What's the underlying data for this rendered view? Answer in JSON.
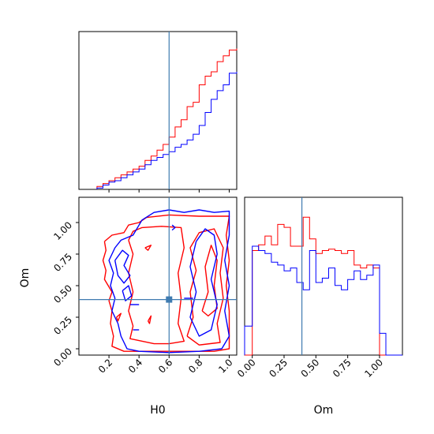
{
  "colors": {
    "red": "#ff0000",
    "blue": "#0000ff",
    "truth": "#3f7bb0"
  },
  "chart_data": [
    {
      "type": "histogram",
      "panel": "H0 marginal",
      "xlim": [
        0.0,
        1.05
      ],
      "truth": 0.6,
      "bin_edges": [
        0.12,
        0.16,
        0.2,
        0.24,
        0.28,
        0.32,
        0.36,
        0.4,
        0.44,
        0.48,
        0.52,
        0.56,
        0.6,
        0.64,
        0.68,
        0.72,
        0.76,
        0.8,
        0.84,
        0.88,
        0.92,
        0.96,
        1.0,
        1.05
      ],
      "series": [
        {
          "color": "red",
          "values": [
            0.02,
            0.04,
            0.06,
            0.08,
            0.1,
            0.12,
            0.14,
            0.16,
            0.2,
            0.23,
            0.27,
            0.31,
            0.36,
            0.43,
            0.48,
            0.57,
            0.6,
            0.72,
            0.78,
            0.81,
            0.88,
            0.92,
            0.96,
            0.97
          ]
        },
        {
          "color": "blue",
          "values": [
            0.01,
            0.03,
            0.05,
            0.06,
            0.08,
            0.1,
            0.12,
            0.14,
            0.17,
            0.2,
            0.22,
            0.24,
            0.26,
            0.29,
            0.31,
            0.34,
            0.38,
            0.44,
            0.53,
            0.62,
            0.68,
            0.72,
            0.8,
            0.81
          ]
        }
      ]
    },
    {
      "type": "contour",
      "panel": "H0 vs Om",
      "xlabel": "H0",
      "ylabel": "Om",
      "xlim": [
        0.0,
        1.05
      ],
      "ylim": [
        -0.05,
        1.2
      ],
      "xticks": [
        "0.2",
        "0.4",
        "0.6",
        "0.8",
        "1.0"
      ],
      "yticks": [
        "0.00",
        "0.25",
        "0.50",
        "0.75",
        "1.00"
      ],
      "truth": {
        "x": 0.6,
        "y": 0.39
      },
      "series": [
        {
          "color": "red",
          "contours": [
            [
              [
                0.17,
                0.85
              ],
              [
                0.18,
                0.78
              ],
              [
                0.16,
                0.7
              ],
              [
                0.18,
                0.62
              ],
              [
                0.17,
                0.55
              ],
              [
                0.22,
                0.45
              ],
              [
                0.2,
                0.38
              ],
              [
                0.22,
                0.3
              ],
              [
                0.21,
                0.2
              ],
              [
                0.23,
                0.1
              ],
              [
                0.22,
                0.02
              ],
              [
                0.3,
                -0.02
              ],
              [
                0.5,
                -0.02
              ],
              [
                0.7,
                -0.02
              ],
              [
                0.9,
                -0.02
              ],
              [
                1.0,
                0.0
              ],
              [
                1.0,
                0.3
              ],
              [
                0.98,
                0.5
              ],
              [
                1.0,
                0.7
              ],
              [
                0.98,
                0.9
              ],
              [
                1.0,
                1.05
              ],
              [
                0.8,
                1.05
              ],
              [
                0.6,
                1.06
              ],
              [
                0.45,
                1.04
              ],
              [
                0.4,
                1.0
              ],
              [
                0.33,
                0.98
              ],
              [
                0.3,
                0.92
              ],
              [
                0.22,
                0.9
              ],
              [
                0.17,
                0.85
              ]
            ],
            [
              [
                0.33,
                0.86
              ],
              [
                0.36,
                0.75
              ],
              [
                0.33,
                0.6
              ],
              [
                0.36,
                0.45
              ],
              [
                0.33,
                0.3
              ],
              [
                0.36,
                0.18
              ],
              [
                0.34,
                0.08
              ],
              [
                0.5,
                0.04
              ],
              [
                0.6,
                0.04
              ],
              [
                0.7,
                0.06
              ],
              [
                0.66,
                0.2
              ],
              [
                0.68,
                0.4
              ],
              [
                0.66,
                0.6
              ],
              [
                0.7,
                0.8
              ],
              [
                0.68,
                0.96
              ],
              [
                0.55,
                0.97
              ],
              [
                0.42,
                0.96
              ],
              [
                0.36,
                0.93
              ],
              [
                0.33,
                0.86
              ]
            ],
            [
              [
                0.72,
                0.1
              ],
              [
                0.76,
                0.25
              ],
              [
                0.74,
                0.45
              ],
              [
                0.78,
                0.62
              ],
              [
                0.74,
                0.8
              ],
              [
                0.8,
                0.92
              ],
              [
                0.9,
                0.95
              ],
              [
                0.96,
                0.8
              ],
              [
                0.94,
                0.6
              ],
              [
                0.96,
                0.4
              ],
              [
                0.92,
                0.2
              ],
              [
                0.94,
                0.05
              ],
              [
                0.8,
                0.03
              ],
              [
                0.72,
                0.1
              ]
            ],
            [
              [
                0.82,
                0.3
              ],
              [
                0.86,
                0.45
              ],
              [
                0.84,
                0.65
              ],
              [
                0.88,
                0.82
              ],
              [
                0.92,
                0.7
              ],
              [
                0.9,
                0.5
              ],
              [
                0.92,
                0.32
              ],
              [
                0.86,
                0.26
              ],
              [
                0.82,
                0.3
              ]
            ],
            [
              [
                0.44,
                0.8
              ],
              [
                0.48,
                0.82
              ],
              [
                0.46,
                0.78
              ],
              [
                0.44,
                0.8
              ]
            ],
            [
              [
                0.25,
                0.25
              ],
              [
                0.28,
                0.28
              ],
              [
                0.26,
                0.22
              ],
              [
                0.25,
                0.25
              ]
            ],
            [
              [
                0.46,
                0.22
              ],
              [
                0.48,
                0.26
              ],
              [
                0.47,
                0.2
              ],
              [
                0.46,
                0.22
              ]
            ]
          ]
        },
        {
          "color": "blue",
          "contours": [
            [
              [
                0.22,
                0.3
              ],
              [
                0.24,
                0.4
              ],
              [
                0.21,
                0.5
              ],
              [
                0.23,
                0.6
              ],
              [
                0.2,
                0.7
              ],
              [
                0.24,
                0.8
              ],
              [
                0.28,
                0.86
              ],
              [
                0.36,
                0.9
              ],
              [
                0.42,
                1.02
              ],
              [
                0.5,
                1.08
              ],
              [
                0.6,
                1.1
              ],
              [
                0.7,
                1.08
              ],
              [
                0.8,
                1.1
              ],
              [
                0.9,
                1.08
              ],
              [
                1.0,
                1.09
              ],
              [
                1.0,
                0.9
              ],
              [
                0.97,
                0.7
              ],
              [
                1.0,
                0.5
              ],
              [
                0.97,
                0.3
              ],
              [
                1.0,
                0.1
              ],
              [
                0.95,
                0.0
              ],
              [
                0.8,
                -0.02
              ],
              [
                0.6,
                -0.03
              ],
              [
                0.4,
                -0.02
              ],
              [
                0.32,
                0.0
              ],
              [
                0.28,
                0.1
              ],
              [
                0.26,
                0.2
              ],
              [
                0.22,
                0.3
              ]
            ],
            [
              [
                0.24,
                0.7
              ],
              [
                0.29,
                0.78
              ],
              [
                0.33,
                0.74
              ],
              [
                0.3,
                0.66
              ],
              [
                0.34,
                0.58
              ],
              [
                0.3,
                0.52
              ],
              [
                0.26,
                0.58
              ],
              [
                0.24,
                0.7
              ]
            ],
            [
              [
                0.29,
                0.46
              ],
              [
                0.33,
                0.5
              ],
              [
                0.35,
                0.42
              ],
              [
                0.31,
                0.38
              ],
              [
                0.29,
                0.46
              ]
            ],
            [
              [
                0.78,
                0.85
              ],
              [
                0.84,
                0.95
              ],
              [
                0.9,
                0.9
              ],
              [
                0.92,
                0.75
              ],
              [
                0.88,
                0.55
              ],
              [
                0.92,
                0.35
              ],
              [
                0.88,
                0.15
              ],
              [
                0.8,
                0.1
              ],
              [
                0.74,
                0.25
              ],
              [
                0.78,
                0.45
              ],
              [
                0.74,
                0.65
              ],
              [
                0.78,
                0.85
              ]
            ],
            [
              [
                0.34,
                0.35
              ],
              [
                0.4,
                0.35
              ]
            ],
            [
              [
                0.36,
                0.15
              ],
              [
                0.4,
                0.15
              ]
            ],
            [
              [
                0.7,
                0.4
              ],
              [
                0.76,
                0.4
              ]
            ],
            [
              [
                0.62,
                0.98
              ],
              [
                0.64,
                0.96
              ],
              [
                0.62,
                0.94
              ]
            ]
          ]
        }
      ]
    },
    {
      "type": "histogram",
      "panel": "Om marginal",
      "xlabel": "Om",
      "xlim": [
        -0.06,
        1.18
      ],
      "xticks": [
        "0.00",
        "0.25",
        "0.50",
        "0.75",
        "1.00"
      ],
      "truth": 0.39,
      "bin_edges": [
        -0.06,
        0.0,
        0.05,
        0.1,
        0.15,
        0.2,
        0.25,
        0.3,
        0.35,
        0.4,
        0.45,
        0.5,
        0.55,
        0.6,
        0.65,
        0.7,
        0.75,
        0.8,
        0.85,
        0.9,
        0.95,
        1.0,
        1.05,
        1.1,
        1.18
      ],
      "series": [
        {
          "color": "red",
          "values": [
            0.0,
            0.72,
            0.76,
            0.82,
            0.76,
            0.9,
            0.88,
            0.75,
            0.75,
            0.95,
            0.8,
            0.7,
            0.72,
            0.73,
            0.72,
            0.7,
            0.72,
            0.62,
            0.6,
            0.62,
            0.6,
            0.0,
            0.0,
            0.0
          ]
        },
        {
          "color": "blue",
          "values": [
            0.2,
            0.75,
            0.72,
            0.7,
            0.64,
            0.62,
            0.58,
            0.6,
            0.5,
            0.45,
            0.72,
            0.5,
            0.53,
            0.6,
            0.48,
            0.45,
            0.52,
            0.58,
            0.52,
            0.55,
            0.62,
            0.15,
            0.0,
            0.0
          ]
        }
      ]
    }
  ]
}
